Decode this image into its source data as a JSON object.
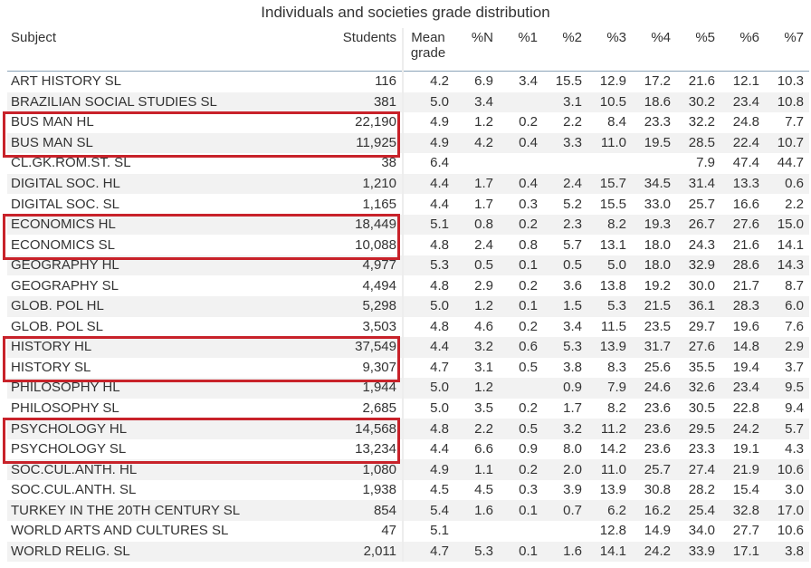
{
  "title": "Individuals and societies grade distribution",
  "columns": {
    "subject": "Subject",
    "students": "Students",
    "mean": [
      "Mean",
      "grade"
    ],
    "pN": "%N",
    "p1": "%1",
    "p2": "%2",
    "p3": "%3",
    "p4": "%4",
    "p5": "%5",
    "p6": "%6",
    "p7": "%7"
  },
  "rows": [
    {
      "subject": "ART HISTORY SL",
      "students": "116",
      "mean": "4.2",
      "pN": "6.9",
      "p1": "3.4",
      "p2": "15.5",
      "p3": "12.9",
      "p4": "17.2",
      "p5": "21.6",
      "p6": "12.1",
      "p7": "10.3"
    },
    {
      "subject": "BRAZILIAN SOCIAL STUDIES SL",
      "students": "381",
      "mean": "5.0",
      "pN": "3.4",
      "p1": "",
      "p2": "3.1",
      "p3": "10.5",
      "p4": "18.6",
      "p5": "30.2",
      "p6": "23.4",
      "p7": "10.8"
    },
    {
      "subject": "BUS MAN HL",
      "students": "22,190",
      "mean": "4.9",
      "pN": "1.2",
      "p1": "0.2",
      "p2": "2.2",
      "p3": "8.4",
      "p4": "23.3",
      "p5": "32.2",
      "p6": "24.8",
      "p7": "7.7"
    },
    {
      "subject": "BUS MAN SL",
      "students": "11,925",
      "mean": "4.9",
      "pN": "4.2",
      "p1": "0.4",
      "p2": "3.3",
      "p3": "11.0",
      "p4": "19.5",
      "p5": "28.5",
      "p6": "22.4",
      "p7": "10.7"
    },
    {
      "subject": "CL.GK.ROM.ST. SL",
      "students": "38",
      "mean": "6.4",
      "pN": "",
      "p1": "",
      "p2": "",
      "p3": "",
      "p4": "",
      "p5": "7.9",
      "p6": "47.4",
      "p7": "44.7"
    },
    {
      "subject": "DIGITAL SOC. HL",
      "students": "1,210",
      "mean": "4.4",
      "pN": "1.7",
      "p1": "0.4",
      "p2": "2.4",
      "p3": "15.7",
      "p4": "34.5",
      "p5": "31.4",
      "p6": "13.3",
      "p7": "0.6"
    },
    {
      "subject": "DIGITAL SOC. SL",
      "students": "1,165",
      "mean": "4.4",
      "pN": "1.7",
      "p1": "0.3",
      "p2": "5.2",
      "p3": "15.5",
      "p4": "33.0",
      "p5": "25.7",
      "p6": "16.6",
      "p7": "2.2"
    },
    {
      "subject": "ECONOMICS HL",
      "students": "18,449",
      "mean": "5.1",
      "pN": "0.8",
      "p1": "0.2",
      "p2": "2.3",
      "p3": "8.2",
      "p4": "19.3",
      "p5": "26.7",
      "p6": "27.6",
      "p7": "15.0"
    },
    {
      "subject": "ECONOMICS SL",
      "students": "10,088",
      "mean": "4.8",
      "pN": "2.4",
      "p1": "0.8",
      "p2": "5.7",
      "p3": "13.1",
      "p4": "18.0",
      "p5": "24.3",
      "p6": "21.6",
      "p7": "14.1"
    },
    {
      "subject": "GEOGRAPHY HL",
      "students": "4,977",
      "mean": "5.3",
      "pN": "0.5",
      "p1": "0.1",
      "p2": "0.5",
      "p3": "5.0",
      "p4": "18.0",
      "p5": "32.9",
      "p6": "28.6",
      "p7": "14.3"
    },
    {
      "subject": "GEOGRAPHY SL",
      "students": "4,494",
      "mean": "4.8",
      "pN": "2.9",
      "p1": "0.2",
      "p2": "3.6",
      "p3": "13.8",
      "p4": "19.2",
      "p5": "30.0",
      "p6": "21.7",
      "p7": "8.7"
    },
    {
      "subject": "GLOB. POL HL",
      "students": "5,298",
      "mean": "5.0",
      "pN": "1.2",
      "p1": "0.1",
      "p2": "1.5",
      "p3": "5.3",
      "p4": "21.5",
      "p5": "36.1",
      "p6": "28.3",
      "p7": "6.0"
    },
    {
      "subject": "GLOB. POL SL",
      "students": "3,503",
      "mean": "4.8",
      "pN": "4.6",
      "p1": "0.2",
      "p2": "3.4",
      "p3": "11.5",
      "p4": "23.5",
      "p5": "29.7",
      "p6": "19.6",
      "p7": "7.6"
    },
    {
      "subject": "HISTORY HL",
      "students": "37,549",
      "mean": "4.4",
      "pN": "3.2",
      "p1": "0.6",
      "p2": "5.3",
      "p3": "13.9",
      "p4": "31.7",
      "p5": "27.6",
      "p6": "14.8",
      "p7": "2.9"
    },
    {
      "subject": "HISTORY SL",
      "students": "9,307",
      "mean": "4.7",
      "pN": "3.1",
      "p1": "0.5",
      "p2": "3.8",
      "p3": "8.3",
      "p4": "25.6",
      "p5": "35.5",
      "p6": "19.4",
      "p7": "3.7"
    },
    {
      "subject": "PHILOSOPHY HL",
      "students": "1,944",
      "mean": "5.0",
      "pN": "1.2",
      "p1": "",
      "p2": "0.9",
      "p3": "7.9",
      "p4": "24.6",
      "p5": "32.6",
      "p6": "23.4",
      "p7": "9.5"
    },
    {
      "subject": "PHILOSOPHY SL",
      "students": "2,685",
      "mean": "5.0",
      "pN": "3.5",
      "p1": "0.2",
      "p2": "1.7",
      "p3": "8.2",
      "p4": "23.6",
      "p5": "30.5",
      "p6": "22.8",
      "p7": "9.4"
    },
    {
      "subject": "PSYCHOLOGY HL",
      "students": "14,568",
      "mean": "4.8",
      "pN": "2.2",
      "p1": "0.5",
      "p2": "3.2",
      "p3": "11.2",
      "p4": "23.6",
      "p5": "29.5",
      "p6": "24.2",
      "p7": "5.7"
    },
    {
      "subject": "PSYCHOLOGY SL",
      "students": "13,234",
      "mean": "4.4",
      "pN": "6.6",
      "p1": "0.9",
      "p2": "8.0",
      "p3": "14.2",
      "p4": "23.6",
      "p5": "23.3",
      "p6": "19.1",
      "p7": "4.3"
    },
    {
      "subject": "SOC.CUL.ANTH. HL",
      "students": "1,080",
      "mean": "4.9",
      "pN": "1.1",
      "p1": "0.2",
      "p2": "2.0",
      "p3": "11.0",
      "p4": "25.7",
      "p5": "27.4",
      "p6": "21.9",
      "p7": "10.6"
    },
    {
      "subject": "SOC.CUL.ANTH. SL",
      "students": "1,938",
      "mean": "4.5",
      "pN": "4.5",
      "p1": "0.3",
      "p2": "3.9",
      "p3": "13.9",
      "p4": "30.8",
      "p5": "28.2",
      "p6": "15.4",
      "p7": "3.0"
    },
    {
      "subject": "TURKEY IN THE 20TH CENTURY SL",
      "students": "854",
      "mean": "5.4",
      "pN": "1.6",
      "p1": "0.1",
      "p2": "0.7",
      "p3": "6.2",
      "p4": "16.2",
      "p5": "25.4",
      "p6": "32.8",
      "p7": "17.0"
    },
    {
      "subject": "WORLD ARTS AND CULTURES SL",
      "students": "47",
      "mean": "5.1",
      "pN": "",
      "p1": "",
      "p2": "",
      "p3": "12.8",
      "p4": "14.9",
      "p5": "34.0",
      "p6": "27.7",
      "p7": "10.6"
    },
    {
      "subject": "WORLD RELIG. SL",
      "students": "2,011",
      "mean": "4.7",
      "pN": "5.3",
      "p1": "0.1",
      "p2": "1.6",
      "p3": "14.1",
      "p4": "24.2",
      "p5": "33.9",
      "p6": "17.1",
      "p7": "3.8"
    }
  ],
  "highlight_color": "#c8222a"
}
